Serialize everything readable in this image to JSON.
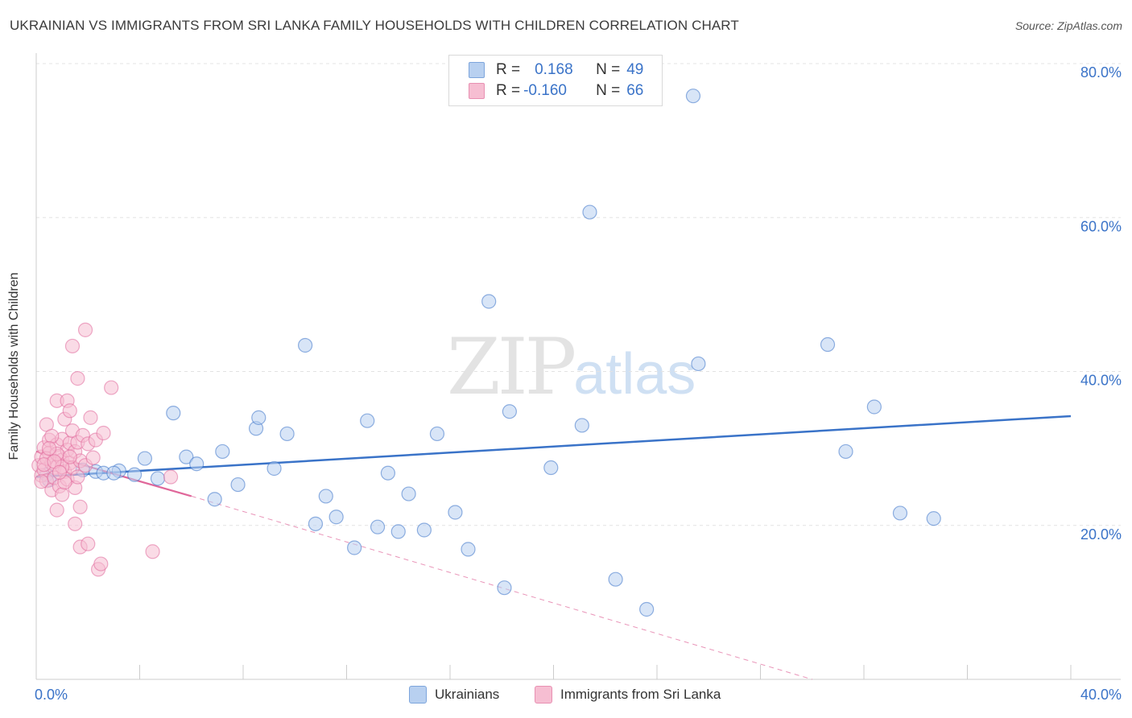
{
  "title": "UKRAINIAN VS IMMIGRANTS FROM SRI LANKA FAMILY HOUSEHOLDS WITH CHILDREN CORRELATION CHART",
  "source": "Source: ZipAtlas.com",
  "watermark": {
    "zip": "ZIP",
    "atlas": "atlas"
  },
  "legend_top": [
    {
      "r_label": "R =",
      "r_value": "0.168",
      "n_label": "N =",
      "n_value": "49"
    },
    {
      "r_label": "R =",
      "r_value": "-0.160",
      "n_label": "N =",
      "n_value": "66"
    }
  ],
  "legend_bottom": [
    "Ukrainians",
    "Immigrants from Sri Lanka"
  ],
  "colors": {
    "blue": "#3a73c8",
    "blue_fill": "#b8d0f0",
    "pink": "#e0679a",
    "pink_fill": "#f6bed2",
    "grid": "#e3e3e3"
  },
  "chart_data": {
    "type": "scatter",
    "ylabel": "Family Households with Children",
    "xlim": [
      0,
      40
    ],
    "ylim": [
      0,
      80
    ],
    "x_ticks": [
      "0.0%",
      "40.0%"
    ],
    "y_ticks": [
      {
        "value": 20,
        "label": "20.0%"
      },
      {
        "value": 40,
        "label": "40.0%"
      },
      {
        "value": 60,
        "label": "60.0%"
      },
      {
        "value": 80,
        "label": "80.0%"
      }
    ],
    "series": [
      {
        "name": "Ukrainians",
        "color": "#3a73c8",
        "fill": "#b8d0f0",
        "trend": {
          "x0": 0,
          "y0": 26.3,
          "x1": 40,
          "y1": 34.2,
          "dashed_to": null
        },
        "points": [
          [
            0.4,
            26.6
          ],
          [
            0.5,
            25.9
          ],
          [
            1.8,
            27.2
          ],
          [
            2.3,
            27.0
          ],
          [
            2.6,
            26.8
          ],
          [
            3.2,
            27.1
          ],
          [
            3.8,
            26.6
          ],
          [
            4.2,
            28.7
          ],
          [
            4.7,
            26.1
          ],
          [
            5.3,
            34.6
          ],
          [
            5.8,
            28.9
          ],
          [
            6.2,
            28.0
          ],
          [
            6.9,
            23.4
          ],
          [
            7.2,
            29.6
          ],
          [
            7.8,
            25.3
          ],
          [
            8.5,
            32.6
          ],
          [
            8.6,
            34.0
          ],
          [
            9.2,
            27.4
          ],
          [
            9.7,
            31.9
          ],
          [
            10.4,
            43.4
          ],
          [
            10.8,
            20.2
          ],
          [
            11.2,
            23.8
          ],
          [
            11.6,
            21.1
          ],
          [
            12.3,
            17.1
          ],
          [
            12.8,
            33.6
          ],
          [
            13.2,
            19.8
          ],
          [
            13.6,
            26.8
          ],
          [
            14.0,
            19.2
          ],
          [
            14.4,
            24.1
          ],
          [
            15.0,
            19.4
          ],
          [
            15.5,
            31.9
          ],
          [
            16.2,
            21.7
          ],
          [
            16.7,
            16.9
          ],
          [
            17.5,
            49.1
          ],
          [
            18.1,
            11.9
          ],
          [
            18.3,
            34.8
          ],
          [
            19.9,
            27.5
          ],
          [
            21.1,
            33.0
          ],
          [
            21.4,
            60.7
          ],
          [
            22.4,
            13.0
          ],
          [
            23.6,
            9.1
          ],
          [
            25.4,
            75.8
          ],
          [
            25.6,
            41.0
          ],
          [
            30.6,
            43.5
          ],
          [
            31.3,
            29.6
          ],
          [
            32.4,
            35.4
          ],
          [
            33.4,
            21.6
          ],
          [
            34.7,
            20.9
          ],
          [
            3.0,
            26.8
          ]
        ]
      },
      {
        "name": "Immigrants from Sri Lanka",
        "color": "#e0679a",
        "fill": "#f6bed2",
        "trend": {
          "x0": 0,
          "y0": 29.6,
          "x1": 6.0,
          "y1": 23.8,
          "dashed_to": {
            "x": 30.0,
            "y": 0.0
          }
        },
        "points": [
          [
            0.1,
            27.8
          ],
          [
            0.2,
            28.9
          ],
          [
            0.2,
            26.5
          ],
          [
            0.3,
            30.1
          ],
          [
            0.3,
            27.2
          ],
          [
            0.4,
            25.8
          ],
          [
            0.4,
            33.1
          ],
          [
            0.5,
            29.4
          ],
          [
            0.5,
            31.1
          ],
          [
            0.6,
            28.1
          ],
          [
            0.6,
            24.6
          ],
          [
            0.7,
            27.5
          ],
          [
            0.7,
            26.2
          ],
          [
            0.8,
            30.5
          ],
          [
            0.8,
            36.2
          ],
          [
            0.8,
            22.0
          ],
          [
            0.9,
            29.0
          ],
          [
            0.9,
            25.1
          ],
          [
            1.0,
            28.5
          ],
          [
            1.0,
            24.0
          ],
          [
            1.0,
            31.2
          ],
          [
            1.1,
            27.0
          ],
          [
            1.1,
            33.8
          ],
          [
            1.2,
            29.8
          ],
          [
            1.2,
            26.0
          ],
          [
            1.2,
            36.2
          ],
          [
            1.3,
            28.1
          ],
          [
            1.3,
            30.7
          ],
          [
            1.3,
            34.9
          ],
          [
            1.4,
            27.5
          ],
          [
            1.4,
            32.3
          ],
          [
            1.4,
            43.3
          ],
          [
            1.5,
            29.6
          ],
          [
            1.5,
            20.2
          ],
          [
            1.5,
            24.9
          ],
          [
            1.6,
            30.8
          ],
          [
            1.6,
            26.3
          ],
          [
            1.6,
            39.1
          ],
          [
            1.7,
            28.4
          ],
          [
            1.7,
            17.2
          ],
          [
            1.7,
            22.4
          ],
          [
            1.8,
            31.7
          ],
          [
            1.9,
            27.8
          ],
          [
            1.9,
            45.4
          ],
          [
            2.0,
            30.6
          ],
          [
            2.0,
            17.6
          ],
          [
            2.1,
            34.0
          ],
          [
            2.2,
            28.8
          ],
          [
            2.3,
            31.1
          ],
          [
            2.4,
            14.3
          ],
          [
            2.5,
            15.0
          ],
          [
            2.6,
            32.0
          ],
          [
            2.9,
            37.9
          ],
          [
            4.5,
            16.6
          ],
          [
            5.2,
            26.3
          ],
          [
            0.2,
            25.7
          ],
          [
            0.4,
            28.7
          ],
          [
            0.6,
            31.6
          ],
          [
            0.8,
            29.3
          ],
          [
            1.0,
            27.6
          ],
          [
            1.1,
            25.6
          ],
          [
            1.3,
            28.9
          ],
          [
            0.3,
            27.9
          ],
          [
            0.5,
            30.0
          ],
          [
            0.7,
            28.3
          ],
          [
            0.9,
            26.9
          ]
        ]
      }
    ]
  }
}
